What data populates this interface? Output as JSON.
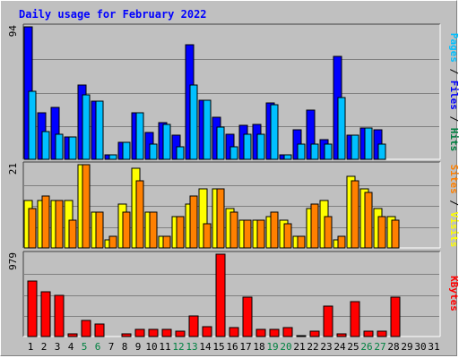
{
  "title": "Daily usage for February 2022",
  "chart_data": [
    {
      "type": "bar",
      "panel": "hits_files_pages",
      "y_max_label": "94",
      "ylim": [
        0,
        94
      ],
      "right_label_parts": [
        {
          "text": "Pages",
          "color": "#00c0ff"
        },
        {
          "text": " / ",
          "color": "#000000"
        },
        {
          "text": "Files",
          "color": "#0000ff"
        },
        {
          "text": " / ",
          "color": "#000000"
        },
        {
          "text": "Hits",
          "color": "#008040"
        }
      ],
      "categories": [
        "1",
        "2",
        "3",
        "4",
        "5",
        "6",
        "7",
        "8",
        "9",
        "10",
        "11",
        "12",
        "13",
        "14",
        "15",
        "16",
        "17",
        "18",
        "19",
        "20",
        "21",
        "22",
        "23",
        "24",
        "25",
        "26",
        "27",
        "28",
        "29",
        "30",
        "31"
      ],
      "series": [
        {
          "name": "Files",
          "color": "#0000ff",
          "values": [
            94,
            33,
            37,
            16,
            53,
            41,
            3,
            12,
            33,
            19,
            26,
            17,
            81,
            42,
            30,
            18,
            24,
            25,
            40,
            3,
            21,
            35,
            14,
            73,
            17,
            22,
            21,
            0,
            0,
            0,
            0
          ]
        },
        {
          "name": "Pages",
          "color": "#00c0ff",
          "values": [
            48,
            20,
            18,
            16,
            46,
            41,
            3,
            12,
            33,
            11,
            25,
            9,
            53,
            42,
            23,
            9,
            18,
            18,
            39,
            3,
            11,
            11,
            11,
            44,
            17,
            22,
            11,
            0,
            0,
            0,
            0
          ]
        }
      ]
    },
    {
      "type": "bar",
      "panel": "visits_sites",
      "y_max_label": "21",
      "ylim": [
        0,
        21
      ],
      "right_label_parts": [
        {
          "text": "Sites",
          "color": "#ff8000"
        },
        {
          "text": " / ",
          "color": "#000000"
        },
        {
          "text": "Visits",
          "color": "#ffff00"
        }
      ],
      "categories": [
        "1",
        "2",
        "3",
        "4",
        "5",
        "6",
        "7",
        "8",
        "9",
        "10",
        "11",
        "12",
        "13",
        "14",
        "15",
        "16",
        "17",
        "18",
        "19",
        "20",
        "21",
        "22",
        "23",
        "24",
        "25",
        "26",
        "27",
        "28",
        "29",
        "30",
        "31"
      ],
      "series": [
        {
          "name": "Visits",
          "color": "#ffff00",
          "values": [
            12,
            12,
            12,
            12,
            21,
            9,
            2,
            11,
            20,
            9,
            3,
            8,
            11,
            15,
            15,
            10,
            7,
            7,
            8,
            7,
            3,
            10,
            12,
            2,
            18,
            15,
            10,
            8,
            0,
            0,
            0
          ]
        },
        {
          "name": "Sites",
          "color": "#ff8000",
          "values": [
            10,
            13,
            12,
            7,
            21,
            9,
            3,
            9,
            17,
            9,
            3,
            8,
            13,
            6,
            15,
            9,
            7,
            7,
            9,
            6,
            3,
            11,
            8,
            3,
            17,
            14,
            8,
            7,
            0,
            0,
            0
          ]
        }
      ]
    },
    {
      "type": "bar",
      "panel": "kbytes",
      "y_max_label": "979",
      "ylim": [
        0,
        979
      ],
      "right_label_parts": [
        {
          "text": "KBytes",
          "color": "#ff0000"
        }
      ],
      "categories": [
        "1",
        "2",
        "3",
        "4",
        "5",
        "6",
        "7",
        "8",
        "9",
        "10",
        "11",
        "12",
        "13",
        "14",
        "15",
        "16",
        "17",
        "18",
        "19",
        "20",
        "21",
        "22",
        "23",
        "24",
        "25",
        "26",
        "27",
        "28",
        "29",
        "30",
        "31"
      ],
      "series": [
        {
          "name": "KBytes",
          "color": "#ff0000",
          "values": [
            663,
            530,
            494,
            29,
            193,
            151,
            0,
            29,
            89,
            86,
            89,
            67,
            240,
            120,
            979,
            103,
            472,
            89,
            89,
            103,
            14,
            67,
            364,
            29,
            412,
            59,
            59,
            465,
            0,
            0,
            0
          ]
        }
      ]
    }
  ],
  "weekend_days": [
    5,
    6,
    12,
    13,
    19,
    20,
    26,
    27
  ],
  "colors": {
    "background": "#c0c0c0",
    "grid": "#808080",
    "axis_label": "#000000",
    "weekday_label": "#000000",
    "weekend_label": "#008040"
  }
}
